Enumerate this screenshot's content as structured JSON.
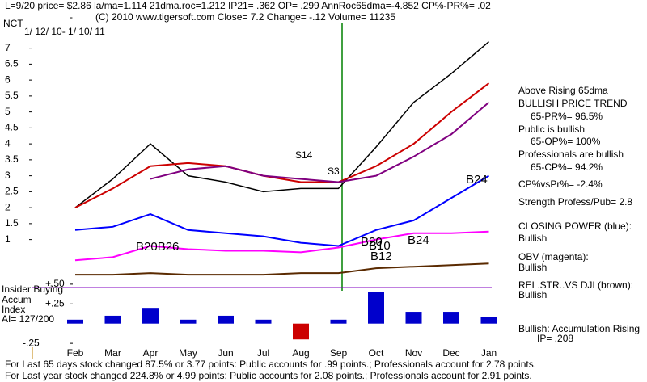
{
  "header": {
    "line1": "L=9/20  price= $2.86  la/ma=1.114 21dma.roc=1.212 IP21= .362 OP= .299 AnnRoc65dma=-4.852 CP%-PR%=  .02",
    "line2": "(C) 2010 www.tigersoft.com    Close=  7.2  Change= -.12 Volume= 11235",
    "symbol": "NCT",
    "dash": "-",
    "range": "1/ 12/ 10- 1/ 10/ 11"
  },
  "chart_data": [
    {
      "type": "line",
      "categories": [
        "Feb",
        "Mar",
        "Apr",
        "May",
        "Jun",
        "Jul",
        "Aug",
        "Sep",
        "Oct",
        "Nov",
        "Dec",
        "Jan"
      ],
      "series": [
        {
          "color": "#000000",
          "values": [
            2.0,
            2.9,
            4.0,
            3.0,
            2.8,
            2.5,
            2.6,
            2.6,
            3.9,
            5.3,
            6.2,
            7.2
          ]
        },
        {
          "color": "#cc0000",
          "values": [
            2.0,
            2.6,
            3.3,
            3.4,
            3.3,
            3.0,
            2.8,
            2.8,
            3.3,
            4.0,
            5.0,
            5.9
          ]
        },
        {
          "color": "#800080",
          "values": [
            null,
            null,
            2.9,
            3.2,
            3.3,
            3.0,
            2.9,
            2.8,
            3.0,
            3.6,
            4.3,
            5.3
          ]
        },
        {
          "color": "#0000ff",
          "values": [
            1.3,
            1.4,
            1.8,
            1.3,
            1.2,
            1.1,
            0.9,
            0.8,
            1.3,
            1.6,
            2.3,
            3.0
          ]
        },
        {
          "color": "#ff00ff",
          "values": [
            0.35,
            0.45,
            0.8,
            0.7,
            0.65,
            0.65,
            0.6,
            0.75,
            1.0,
            1.2,
            1.2,
            1.25
          ]
        },
        {
          "color": "#5a2a00",
          "values": [
            -0.1,
            -0.1,
            -0.05,
            -0.1,
            -0.1,
            -0.1,
            -0.05,
            -0.05,
            0.1,
            0.15,
            0.2,
            0.25
          ]
        }
      ],
      "ylim": [
        -0.25,
        7.75
      ],
      "yticks": [
        1,
        1.5,
        2,
        2.5,
        3,
        3.5,
        4,
        4.5,
        5,
        5.5,
        6,
        6.5,
        7
      ],
      "annotations": [
        "S14",
        "S3",
        "B20B26",
        "B20",
        "B10",
        "B12",
        "B24",
        "B24"
      ]
    },
    {
      "type": "bar",
      "categories": [
        "Feb",
        "Mar",
        "Apr",
        "May",
        "Jun",
        "Jul",
        "Aug",
        "Sep",
        "Oct",
        "Nov",
        "Dec",
        "Jan"
      ],
      "values": [
        0.05,
        0.1,
        0.2,
        0.05,
        0.1,
        0.05,
        -0.2,
        0.05,
        0.4,
        0.15,
        0.15,
        0.08
      ],
      "color": "#0000cc",
      "negative_color": "#cc0000",
      "ylim": [
        -0.3,
        0.55
      ],
      "yticks": [
        {
          "value": 0.5,
          "label": "+.50"
        },
        {
          "value": 0.25,
          "label": "+.25"
        },
        {
          "value": -0.25,
          "label": "-.25"
        }
      ],
      "labels": [
        "Insider Buying",
        "Accum",
        "Index",
        "AI= 127/200"
      ]
    }
  ],
  "side_panel": [
    "Above Rising 65dma",
    "BULLISH PRICE TREND",
    "65-PR%= 96.5%",
    "Public is bullish",
    "65-OP%= 100%",
    "Professionals are bullish",
    "65-CP%= 94.2%",
    "CP%vsPr%= -2.4%",
    "Strength Profess/Pub= 2.8",
    "CLOSING POWER (blue):",
    "Bullish",
    "OBV (magenta):",
    "Bullish",
    "REL.STR..VS DJI (brown):",
    "Bullish",
    "Bullish: Accumulation Rising",
    "IP= .208"
  ],
  "footer": [
    "For Last 65 days stock changed  87.5% or  3.77 points:  Public accounts for  .99 points.;  Professionals account for  2.78 points.",
    "For Last year stock changed  224.8% or  4.99 points:  Public accounts for  2.08 points.;  Professionals account for  2.91 points."
  ]
}
